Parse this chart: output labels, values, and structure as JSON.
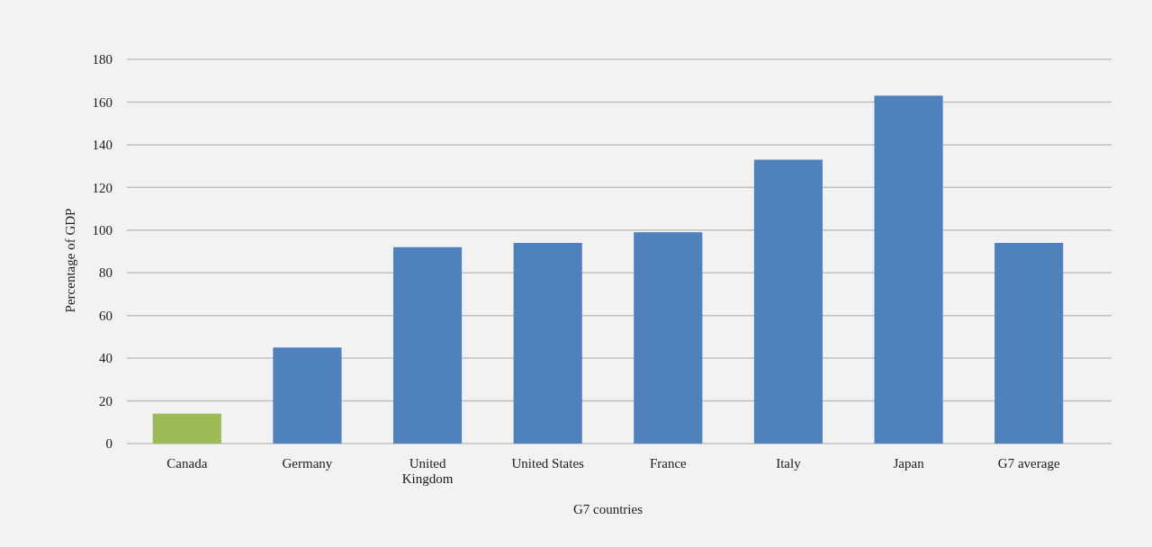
{
  "chart_data": {
    "type": "bar",
    "xlabel": "G7 countries",
    "ylabel": "Percentage of GDP",
    "categories": [
      "Canada",
      "Germany",
      "United Kingdom",
      "United States",
      "France",
      "Italy",
      "Japan",
      "G7 average"
    ],
    "values": [
      14,
      45,
      92,
      94,
      99,
      133,
      163,
      94
    ],
    "colors": [
      "#9bbb59",
      "#4f81bd",
      "#4f81bd",
      "#4f81bd",
      "#4f81bd",
      "#4f81bd",
      "#4f81bd",
      "#4f81bd"
    ],
    "ylim": [
      0,
      180
    ],
    "yticks": [
      0,
      20,
      40,
      60,
      80,
      100,
      120,
      140,
      160,
      180
    ],
    "grid": "y"
  }
}
